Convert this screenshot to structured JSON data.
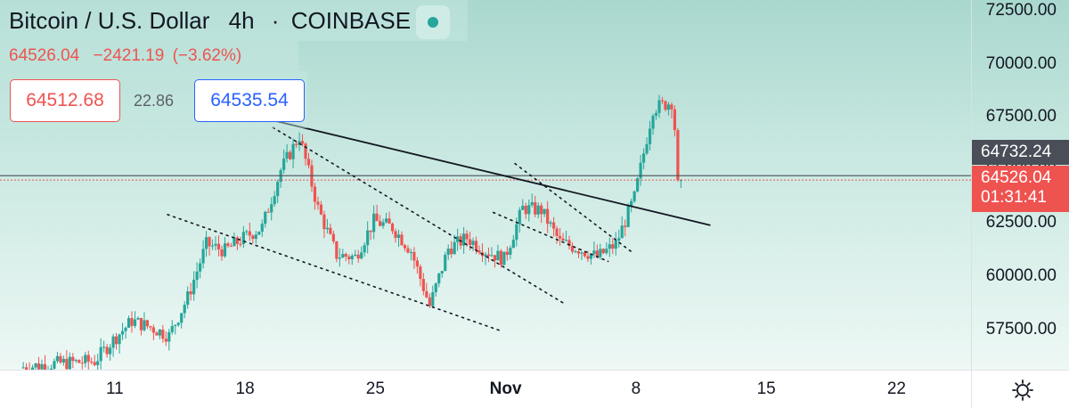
{
  "header": {
    "symbol": "Bitcoin / U.S. Dollar",
    "interval": "4h",
    "exchange": "COINBASE",
    "last": "64526.04",
    "change": "−2421.19",
    "change_pct": "(−3.62%)",
    "bid": "64512.68",
    "spread": "22.86",
    "ask": "64535.54"
  },
  "price_labels": {
    "dark": "64732.24",
    "red_price": "64526.04",
    "countdown": "01:31:41"
  },
  "icons": {
    "settings": "gear-icon",
    "status": "market-status-dot"
  },
  "colors": {
    "up": "#26a69a",
    "down": "#ef5350",
    "bid": "#ef5350",
    "ask": "#2962ff"
  },
  "chart_data": {
    "type": "candlestick",
    "y_ticks": [
      "72500.00",
      "70000.00",
      "67500.00",
      "65000.00",
      "62500.00",
      "60000.00",
      "57500.00"
    ],
    "y_tick_values": [
      72500,
      70000,
      67500,
      65000,
      62500,
      60000,
      57500
    ],
    "ylim": [
      55600,
      73000
    ],
    "x_ticks": [
      "11",
      "18",
      "25",
      "Nov",
      "8",
      "15",
      "22"
    ],
    "x_tick_dates": [
      "2021-10-11",
      "2021-10-18",
      "2021-10-25",
      "2021-11-01",
      "2021-11-08",
      "2021-11-15",
      "2021-11-22"
    ],
    "xlim": [
      "2021-10-04T20:00",
      "2021-11-26T00:00"
    ],
    "candle_interval": "4h",
    "closes_path": [
      [
        "2021-10-06",
        55700
      ],
      [
        "2021-10-08",
        55900
      ],
      [
        "2021-10-10",
        56000
      ],
      [
        "2021-10-11",
        57000
      ],
      [
        "2021-10-12",
        57900
      ],
      [
        "2021-10-13",
        57600
      ],
      [
        "2021-10-14",
        57200
      ],
      [
        "2021-10-15",
        59000
      ],
      [
        "2021-10-16",
        61500
      ],
      [
        "2021-10-17",
        61200
      ],
      [
        "2021-10-18",
        61800
      ],
      [
        "2021-10-19",
        62300
      ],
      [
        "2021-10-20",
        65000
      ],
      [
        "2021-10-21",
        66600
      ],
      [
        "2021-10-22",
        63200
      ],
      [
        "2021-10-23",
        61000
      ],
      [
        "2021-10-24",
        60900
      ],
      [
        "2021-10-25",
        62600
      ],
      [
        "2021-10-26",
        62300
      ],
      [
        "2021-10-27",
        61200
      ],
      [
        "2021-10-28",
        58600
      ],
      [
        "2021-10-29",
        61300
      ],
      [
        "2021-10-30",
        61800
      ],
      [
        "2021-10-31",
        61200
      ],
      [
        "2021-11-01",
        60800
      ],
      [
        "2021-11-02",
        63200
      ],
      [
        "2021-11-03",
        63100
      ],
      [
        "2021-11-04",
        61600
      ],
      [
        "2021-11-05",
        61300
      ],
      [
        "2021-11-06",
        60900
      ],
      [
        "2021-11-07",
        61500
      ],
      [
        "2021-11-08",
        63700
      ],
      [
        "2021-11-09",
        67900
      ],
      [
        "2021-11-10",
        68200
      ],
      [
        "2021-11-10T12:00",
        64526.04
      ]
    ],
    "current_price": 64526.04,
    "horizontal_line": 64732.24,
    "trendlines": [
      {
        "style": "solid",
        "from": [
          "2021-10-19T16:00",
          67300
        ],
        "to": [
          "2021-11-12T00:00",
          62400
        ]
      },
      {
        "style": "dotted",
        "from": [
          "2021-10-13T20:00",
          62900
        ],
        "to": [
          "2021-10-31T20:00",
          57400
        ]
      },
      {
        "style": "dotted",
        "from": [
          "2021-10-19T12:00",
          67000
        ],
        "to": [
          "2021-11-04T04:00",
          58700
        ]
      },
      {
        "style": "dotted",
        "from": [
          "2021-10-31T08:00",
          63000
        ],
        "to": [
          "2021-11-06T12:00",
          60700
        ]
      },
      {
        "style": "dotted",
        "from": [
          "2021-11-01T12:00",
          65300
        ],
        "to": [
          "2021-11-07T20:00",
          61100
        ]
      }
    ]
  }
}
